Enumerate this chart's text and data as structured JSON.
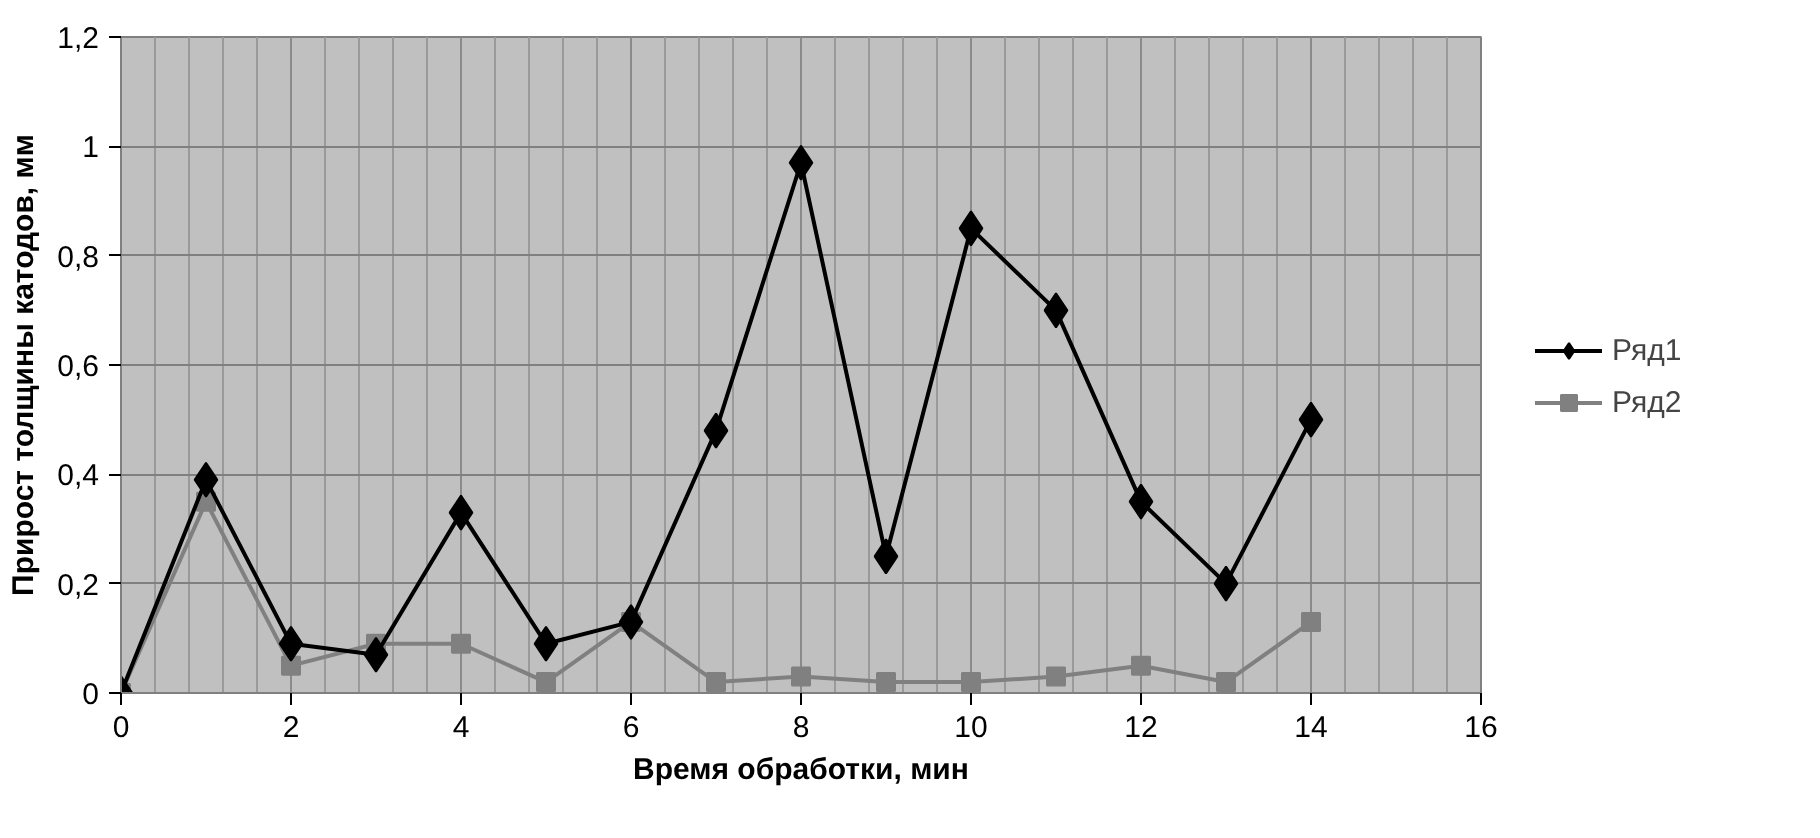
{
  "chart_data": {
    "type": "line",
    "xlabel": "Время обработки, мин",
    "ylabel": "Прирост толщины катодов, мм",
    "x": [
      0,
      1,
      2,
      3,
      4,
      5,
      6,
      7,
      8,
      9,
      10,
      11,
      12,
      13,
      14
    ],
    "series": [
      {
        "name": "Ряд1",
        "color": "#000000",
        "marker": "diamond",
        "values": [
          0,
          0.39,
          0.09,
          0.07,
          0.33,
          0.09,
          0.13,
          0.48,
          0.97,
          0.25,
          0.85,
          0.7,
          0.35,
          0.2,
          0.5
        ]
      },
      {
        "name": "Ряд2",
        "color": "#808080",
        "marker": "square",
        "values": [
          0,
          0.35,
          0.05,
          0.09,
          0.09,
          0.02,
          0.13,
          0.02,
          0.03,
          0.02,
          0.02,
          0.03,
          0.05,
          0.02,
          0.13
        ]
      }
    ],
    "xlim": [
      0,
      16
    ],
    "xticks": [
      0,
      2,
      4,
      6,
      8,
      10,
      12,
      14,
      16
    ],
    "ylim": [
      0,
      1.2
    ],
    "yticks": [
      0,
      {
        "value": 0.2,
        "label": "0,2"
      },
      {
        "value": 0.4,
        "label": "0,4"
      },
      {
        "value": 0.6,
        "label": "0,6"
      },
      {
        "value": 0.8,
        "label": "0,8"
      },
      1,
      {
        "value": 1.2,
        "label": "1,2"
      }
    ],
    "grid": true,
    "legend": "right",
    "line_style": "solid"
  }
}
